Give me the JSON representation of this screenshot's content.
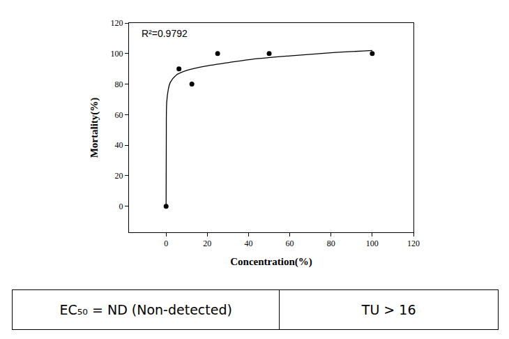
{
  "chart_data": {
    "type": "scatter",
    "x_label": "Concentration(%)",
    "y_label": "Mortality(%)",
    "annotations": [
      "R²=0.9792"
    ],
    "color": "#000000",
    "series": [
      {
        "type": "scatter",
        "marker": "circle",
        "x": [
          0,
          6.25,
          12.5,
          25,
          50,
          100
        ],
        "values": [
          0,
          90,
          80,
          100,
          100,
          100
        ]
      },
      {
        "type": "line",
        "line_style": "solid",
        "x": [
          0,
          0.1,
          0.3,
          1,
          2,
          5,
          10,
          20,
          30,
          40,
          60,
          80,
          100
        ],
        "values": [
          0,
          45,
          68,
          76,
          81,
          86,
          89,
          92,
          94,
          96,
          98.5,
          100.5,
          102
        ]
      }
    ],
    "xlim": [
      -18,
      120
    ],
    "ylim": [
      -17,
      120
    ],
    "xticks": [
      0,
      20,
      40,
      60,
      80,
      100,
      120
    ],
    "yticks": [
      0,
      20,
      40,
      60,
      80,
      100,
      120
    ],
    "grid": false
  },
  "table": {
    "rows": [
      [
        "EC₅₀ = ND (Non-detected)",
        "TU > 16"
      ]
    ]
  }
}
